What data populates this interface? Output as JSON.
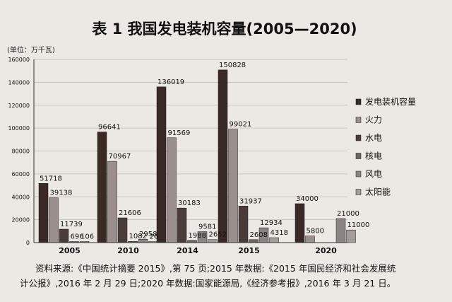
{
  "chart_data": {
    "type": "bar",
    "title": "表 1 我国发电装机容量(2005—2020)",
    "unit_label": "(单位：万千瓦)",
    "categories": [
      "2005",
      "2010",
      "2014",
      "2015",
      "2020"
    ],
    "series": [
      {
        "name": "发电装机容量",
        "color": "#3a2a26",
        "values": [
          51718,
          96641,
          136019,
          150828,
          34000
        ]
      },
      {
        "name": "火力",
        "color": "#9a8f8c",
        "values": [
          39138,
          70967,
          91569,
          99021,
          5800
        ]
      },
      {
        "name": "水电",
        "color": "#4a3c39",
        "values": [
          11739,
          21606,
          30183,
          31937,
          null
        ]
      },
      {
        "name": "核电",
        "color": "#6e6462",
        "values": [
          696,
          1082,
          1988,
          2608,
          null
        ]
      },
      {
        "name": "风电",
        "color": "#8c8483",
        "values": [
          106,
          2958,
          9581,
          12934,
          21000
        ]
      },
      {
        "name": "太阳能",
        "color": "#a49c9a",
        "values": [
          null,
          26,
          2652,
          4318,
          11000
        ]
      }
    ],
    "ylim": [
      0,
      160000
    ],
    "yticks": [
      0,
      20000,
      40000,
      60000,
      80000,
      100000,
      120000,
      140000,
      160000
    ],
    "grid": true,
    "legend_position": "right"
  },
  "source_note": {
    "line1": "资料来源:《中国统计摘要 2015》,第 75 页;2015 年数据:《2015 年国民经济和社会发展统",
    "line2": "计公报》,2016 年 2 月 29 日;2020 年数据:国家能源局,《经济参考报》,2016 年 3 月 21 日。"
  }
}
